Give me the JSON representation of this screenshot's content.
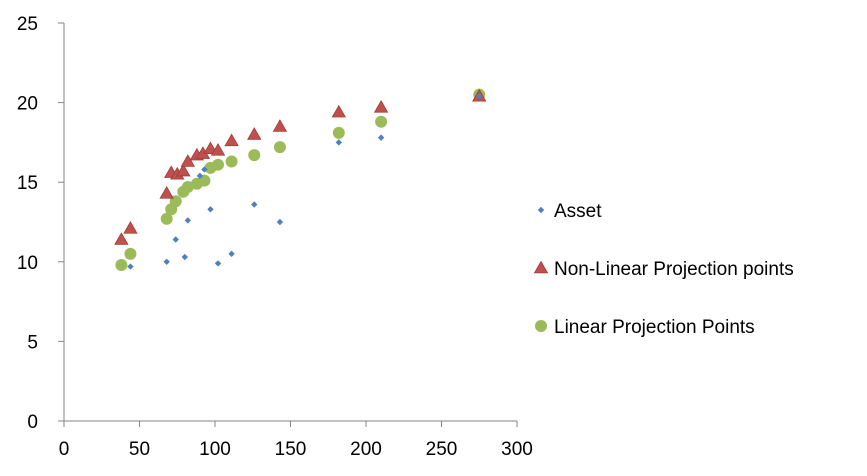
{
  "chart_data": {
    "type": "scatter",
    "title": "",
    "xlabel": "",
    "ylabel": "",
    "xlim": [
      0,
      300
    ],
    "ylim": [
      0,
      25
    ],
    "x_ticks": [
      "0",
      "50",
      "100",
      "150",
      "200",
      "250",
      "300"
    ],
    "y_ticks": [
      "0",
      "5",
      "10",
      "15",
      "20",
      "25"
    ],
    "grid": false,
    "legend_position": "right",
    "series": [
      {
        "name": "Asset",
        "marker": "diamond",
        "color": "#4F81BD",
        "points": [
          [
            44,
            9.7
          ],
          [
            68,
            10.0
          ],
          [
            74,
            11.4
          ],
          [
            80,
            10.3
          ],
          [
            82,
            12.6
          ],
          [
            90,
            15.4
          ],
          [
            93,
            15.8
          ],
          [
            97,
            13.3
          ],
          [
            102,
            9.9
          ],
          [
            111,
            10.5
          ],
          [
            126,
            13.6
          ],
          [
            143,
            12.5
          ],
          [
            182,
            17.5
          ],
          [
            210,
            17.8
          ],
          [
            275,
            20.4
          ]
        ]
      },
      {
        "name": "Non-Linear Projection points",
        "marker": "triangle",
        "color": "#C0504D",
        "points": [
          [
            38,
            11.4
          ],
          [
            44,
            12.1
          ],
          [
            68,
            14.3
          ],
          [
            71,
            15.6
          ],
          [
            75,
            15.5
          ],
          [
            79,
            15.7
          ],
          [
            82,
            16.3
          ],
          [
            88,
            16.7
          ],
          [
            92,
            16.8
          ],
          [
            97,
            17.1
          ],
          [
            102,
            17.0
          ],
          [
            111,
            17.6
          ],
          [
            126,
            18.0
          ],
          [
            143,
            18.5
          ],
          [
            182,
            19.4
          ],
          [
            210,
            19.7
          ],
          [
            275,
            20.4
          ]
        ]
      },
      {
        "name": "Linear Projection Points",
        "marker": "circle",
        "color": "#9BBB59",
        "points": [
          [
            38,
            9.8
          ],
          [
            44,
            10.5
          ],
          [
            68,
            12.7
          ],
          [
            71,
            13.3
          ],
          [
            74,
            13.8
          ],
          [
            79,
            14.4
          ],
          [
            82,
            14.7
          ],
          [
            88,
            14.9
          ],
          [
            93,
            15.1
          ],
          [
            97,
            15.9
          ],
          [
            102,
            16.1
          ],
          [
            111,
            16.3
          ],
          [
            126,
            16.7
          ],
          [
            143,
            17.2
          ],
          [
            182,
            18.1
          ],
          [
            210,
            18.8
          ],
          [
            275,
            20.5
          ]
        ]
      }
    ]
  }
}
